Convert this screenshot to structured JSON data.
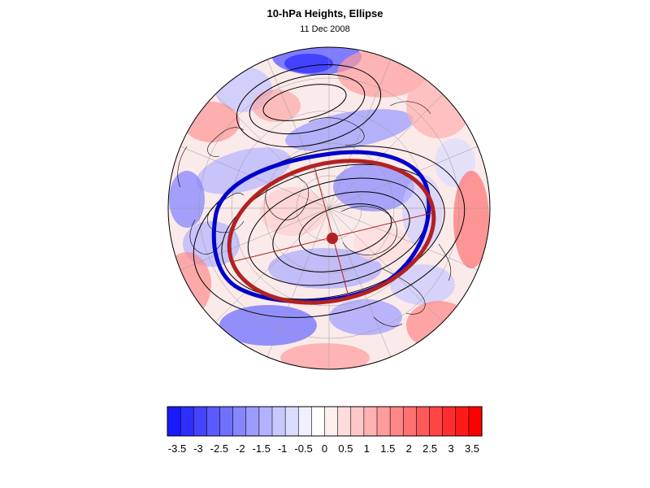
{
  "figure": {
    "title": "10-hPa Heights, Ellipse",
    "date": "11 Dec 2008"
  },
  "colorbar": {
    "tick_labels": [
      "-3.5",
      "-3",
      "-2.5",
      "-2",
      "-1.5",
      "-1",
      "-0.5",
      "0",
      "0.5",
      "1",
      "1.5",
      "2",
      "2.5",
      "3",
      "3.5"
    ],
    "colors": [
      "#1a1aff",
      "#2e2eff",
      "#4444ff",
      "#5a5aff",
      "#7070ff",
      "#8686ff",
      "#9c9cff",
      "#b2b2ff",
      "#c8c8ff",
      "#dcdcff",
      "#f0f0ff",
      "#ffffff",
      "#fff0f0",
      "#ffdcdc",
      "#ffc8c8",
      "#ffb2b2",
      "#ff9c9c",
      "#ff8686",
      "#ff7070",
      "#ff5a5a",
      "#ff4444",
      "#ff2e2e",
      "#ff1a1a",
      "#ff0000"
    ]
  },
  "map": {
    "projection": "polar-stereographic-north",
    "colors": {
      "vortex_edge": "#0000cc",
      "fitted_ellipse": "#b22222",
      "ellipse_center": "#b22222",
      "height_contours": "#000000",
      "graticule": "#9a9a9a",
      "coastline": "#000000"
    }
  }
}
